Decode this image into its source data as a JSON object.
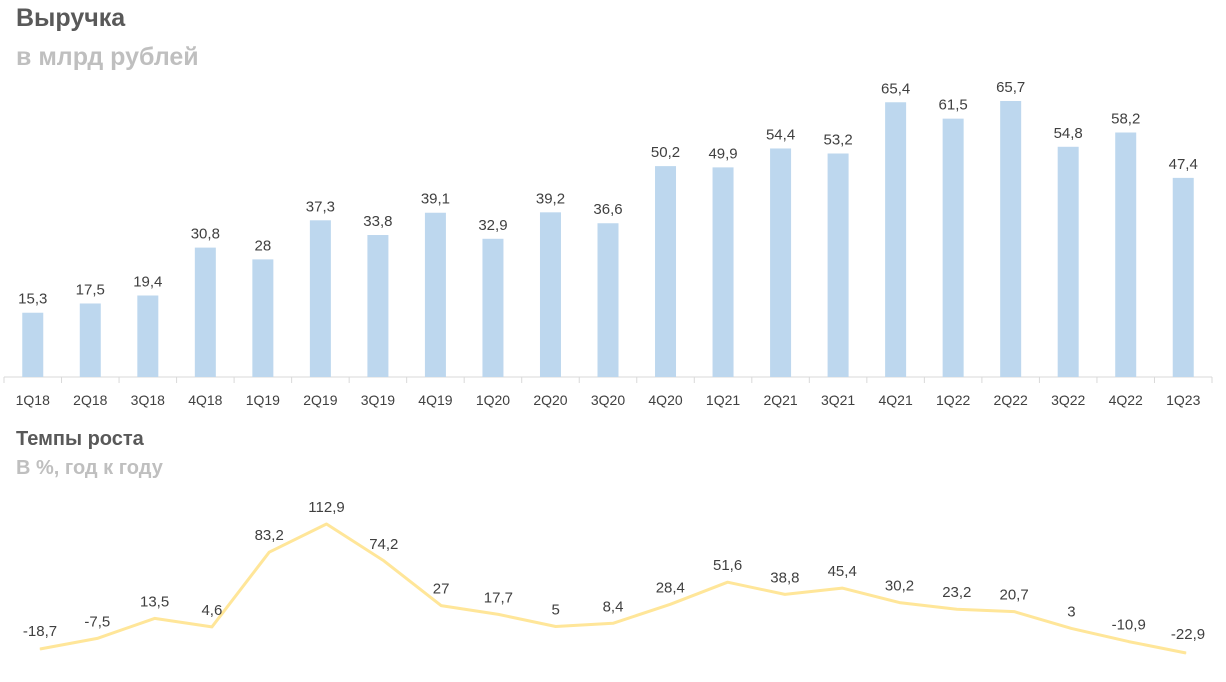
{
  "chart_data": [
    {
      "type": "bar",
      "title": "Выручка",
      "subtitle": "в млрд рублей",
      "categories": [
        "1Q18",
        "2Q18",
        "3Q18",
        "4Q18",
        "1Q19",
        "2Q19",
        "3Q19",
        "4Q19",
        "1Q20",
        "2Q20",
        "3Q20",
        "4Q20",
        "1Q21",
        "2Q21",
        "3Q21",
        "4Q21",
        "1Q22",
        "2Q22",
        "3Q22",
        "4Q22",
        "1Q23"
      ],
      "values": [
        15.3,
        17.5,
        19.4,
        30.8,
        28,
        37.3,
        33.8,
        39.1,
        32.9,
        39.2,
        36.6,
        50.2,
        49.9,
        54.4,
        53.2,
        65.4,
        61.5,
        65.7,
        54.8,
        58.2,
        47.4
      ],
      "value_labels": [
        "15,3",
        "17,5",
        "19,4",
        "30,8",
        "28",
        "37,3",
        "33,8",
        "39,1",
        "32,9",
        "39,2",
        "36,6",
        "50,2",
        "49,9",
        "54,4",
        "53,2",
        "65,4",
        "61,5",
        "65,7",
        "54,8",
        "58,2",
        "47,4"
      ],
      "ylim": [
        0,
        65.7
      ],
      "color": "#bdd7ee",
      "grid": false
    },
    {
      "type": "line",
      "title": "Темпы роста",
      "subtitle": "В %, год к году",
      "categories": [
        "1Q18",
        "2Q18",
        "3Q18",
        "4Q18",
        "1Q19",
        "2Q19",
        "3Q19",
        "4Q19",
        "1Q20",
        "2Q20",
        "3Q20",
        "4Q20",
        "1Q21",
        "2Q21",
        "3Q21",
        "4Q21",
        "1Q22",
        "2Q22",
        "3Q22",
        "4Q22",
        "1Q23"
      ],
      "values": [
        -18.7,
        -7.5,
        13.5,
        4.6,
        83.2,
        112.9,
        74.2,
        27,
        17.7,
        5,
        8.4,
        28.4,
        51.6,
        38.8,
        45.4,
        30.2,
        23.2,
        20.7,
        3,
        -10.9,
        -22.9
      ],
      "value_labels": [
        "-18,7",
        "-7,5",
        "13,5",
        "4,6",
        "83,2",
        "112,9",
        "74,2",
        "27",
        "17,7",
        "5",
        "8,4",
        "28,4",
        "51,6",
        "38,8",
        "45,4",
        "30,2",
        "23,2",
        "20,7",
        "3",
        "-10,9",
        "-22,9"
      ],
      "ylim": [
        -22.9,
        112.9
      ],
      "color": "#ffe699",
      "grid": false
    }
  ]
}
